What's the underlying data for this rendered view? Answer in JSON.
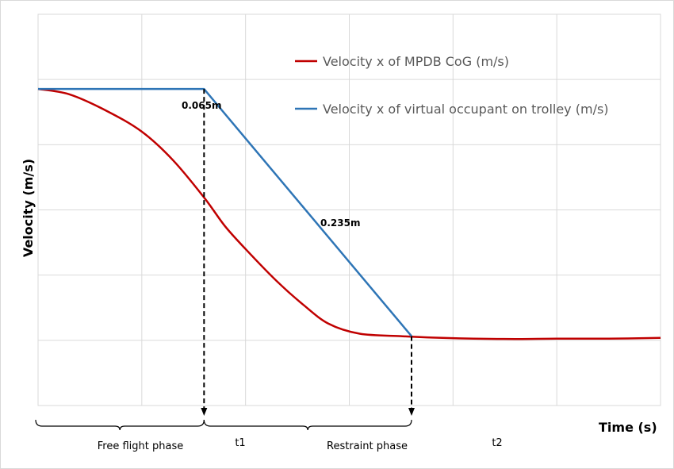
{
  "chart_data": {
    "type": "line",
    "xlabel": "Time (s)",
    "ylabel": "Velocity (m/s)",
    "grid": true,
    "legend_position": "top-right",
    "series": [
      {
        "name": "Velocity x of MPDB CoG (m/s)",
        "color": "#c00000",
        "points": [
          [
            0,
            7.9
          ],
          [
            0.3,
            7.75
          ],
          [
            0.65,
            7.3
          ],
          [
            1.0,
            6.7
          ],
          [
            1.3,
            5.9
          ],
          [
            1.6,
            4.85
          ],
          [
            1.8,
            4.05
          ],
          [
            2.0,
            3.4
          ],
          [
            2.3,
            2.5
          ],
          [
            2.55,
            1.85
          ],
          [
            2.8,
            1.3
          ],
          [
            3.1,
            1.02
          ],
          [
            3.5,
            0.95
          ],
          [
            3.8,
            0.91
          ],
          [
            4.2,
            0.88
          ],
          [
            4.6,
            0.87
          ],
          [
            5.0,
            0.88
          ],
          [
            5.5,
            0.88
          ],
          [
            6.0,
            0.9
          ]
        ]
      },
      {
        "name": "Velocity x of virtual occupant on trolley (m/s)",
        "color": "#2e75b6",
        "points": [
          [
            0,
            7.9
          ],
          [
            1.6,
            7.9
          ],
          [
            3.6,
            0.95
          ]
        ]
      }
    ],
    "xlim": [
      0,
      6.0
    ],
    "ylim": [
      -1.0,
      10.0
    ],
    "annotations": [
      {
        "text": "0.065m"
      },
      {
        "text": "0.235m"
      }
    ],
    "markers": [
      {
        "label": "t1",
        "x": 1.6
      },
      {
        "label": "t2",
        "x": 3.6
      }
    ],
    "phases": [
      {
        "label": "Free flight phase"
      },
      {
        "label": "Restraint phase"
      }
    ]
  }
}
